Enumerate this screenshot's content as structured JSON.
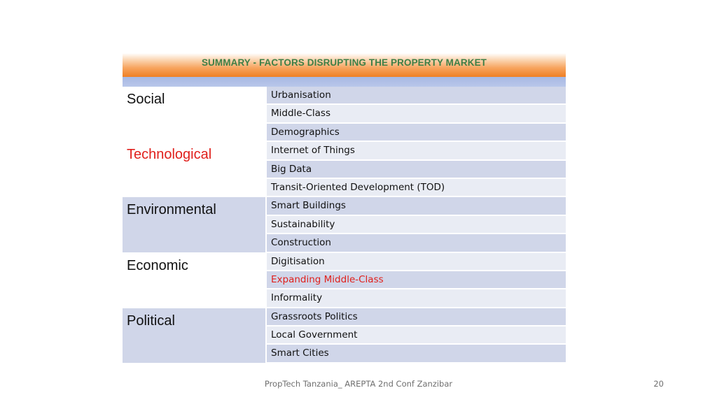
{
  "slide": {
    "title": "SUMMARY - FACTORS DISRUPTING THE PROPERTY MARKET",
    "footer": "PropTech Tanzania_ AREPTA 2nd Conf Zanzibar",
    "page_number": "20"
  },
  "colors": {
    "title_green": "#3e7f47",
    "highlight_red": "#e0201c",
    "banner_orange": "#ef7f24",
    "row_dark": "#d0d6e9",
    "row_light": "#e9ecf4"
  },
  "table": {
    "groups": [
      {
        "category": "Social",
        "items": [
          "Urbanisation",
          "Middle-Class",
          "Demographics"
        ]
      },
      {
        "category": "Technological",
        "items": [
          "Internet of Things",
          "Big Data",
          "Transit-Oriented Development (TOD)"
        ]
      },
      {
        "category": "Environmental",
        "items": [
          "Smart Buildings",
          "Sustainability",
          "Construction"
        ]
      },
      {
        "category": "Economic",
        "items": [
          "Digitisation",
          "Expanding Middle-Class",
          "Informality"
        ]
      },
      {
        "category": "Political",
        "items": [
          "Grassroots Politics",
          "Local Government",
          "Smart Cities"
        ]
      }
    ]
  }
}
